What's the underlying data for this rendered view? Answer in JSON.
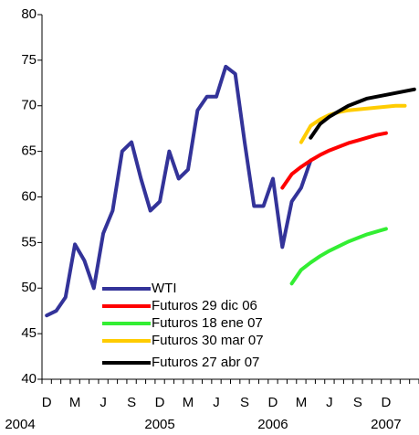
{
  "chart_data": {
    "type": "line",
    "categories": [
      "D",
      null,
      null,
      "M",
      null,
      null,
      "J",
      null,
      null,
      "S",
      null,
      null,
      "D",
      null,
      null,
      "M",
      null,
      null,
      "J",
      null,
      null,
      "S",
      null,
      null,
      "D",
      null,
      null,
      "M",
      null,
      null,
      "J",
      null,
      null,
      "S",
      null,
      null,
      "D",
      null,
      null,
      null
    ],
    "years": [
      "2004",
      null,
      null,
      null,
      null,
      null,
      null,
      null,
      null,
      null,
      null,
      null,
      "2005",
      null,
      null,
      null,
      null,
      null,
      null,
      null,
      null,
      null,
      null,
      null,
      "2006",
      null,
      null,
      null,
      null,
      null,
      null,
      null,
      null,
      null,
      null,
      null,
      "2007",
      null,
      null,
      null
    ],
    "series": [
      {
        "name": "WTI",
        "color": "#333399",
        "values": [
          47,
          47.5,
          49,
          54.8,
          53,
          50,
          56,
          58.5,
          65,
          66,
          62,
          58.5,
          59.5,
          65,
          62,
          63,
          69.5,
          71,
          71,
          74.3,
          73.5,
          66,
          59,
          59,
          62,
          54.5,
          59.5,
          61,
          64,
          null,
          null,
          null,
          null,
          null,
          null,
          null,
          null,
          null,
          null,
          null
        ]
      },
      {
        "name": "Futuros 29 dic 06",
        "color": "#ff0000",
        "values": [
          null,
          null,
          null,
          null,
          null,
          null,
          null,
          null,
          null,
          null,
          null,
          null,
          null,
          null,
          null,
          null,
          null,
          null,
          null,
          null,
          null,
          null,
          null,
          null,
          null,
          61,
          62.5,
          63.3,
          64,
          64.6,
          65.1,
          65.5,
          65.9,
          66.2,
          66.5,
          66.8,
          67,
          null,
          null,
          null
        ]
      },
      {
        "name": "Futuros 18 ene 07",
        "color": "#33ee33",
        "values": [
          null,
          null,
          null,
          null,
          null,
          null,
          null,
          null,
          null,
          null,
          null,
          null,
          null,
          null,
          null,
          null,
          null,
          null,
          null,
          null,
          null,
          null,
          null,
          null,
          null,
          null,
          50.5,
          52,
          52.8,
          53.5,
          54.1,
          54.6,
          55.1,
          55.5,
          55.9,
          56.2,
          56.5,
          null,
          null,
          null
        ]
      },
      {
        "name": "Futuros 30 mar 07",
        "color": "#ffcc00",
        "values": [
          null,
          null,
          null,
          null,
          null,
          null,
          null,
          null,
          null,
          null,
          null,
          null,
          null,
          null,
          null,
          null,
          null,
          null,
          null,
          null,
          null,
          null,
          null,
          null,
          null,
          null,
          null,
          66,
          67.8,
          68.5,
          69,
          69.3,
          69.5,
          69.6,
          69.7,
          69.8,
          69.9,
          70,
          70,
          null
        ]
      },
      {
        "name": "Futuros 27 abr 07",
        "color": "#000000",
        "values": [
          null,
          null,
          null,
          null,
          null,
          null,
          null,
          null,
          null,
          null,
          null,
          null,
          null,
          null,
          null,
          null,
          null,
          null,
          null,
          null,
          null,
          null,
          null,
          null,
          null,
          null,
          null,
          null,
          66.5,
          68,
          68.8,
          69.4,
          70,
          70.4,
          70.8,
          71,
          71.2,
          71.4,
          71.6,
          71.8
        ]
      }
    ],
    "ylim": [
      40,
      80
    ],
    "yticks": [
      40,
      45,
      50,
      55,
      60,
      65,
      70,
      75,
      80
    ]
  }
}
